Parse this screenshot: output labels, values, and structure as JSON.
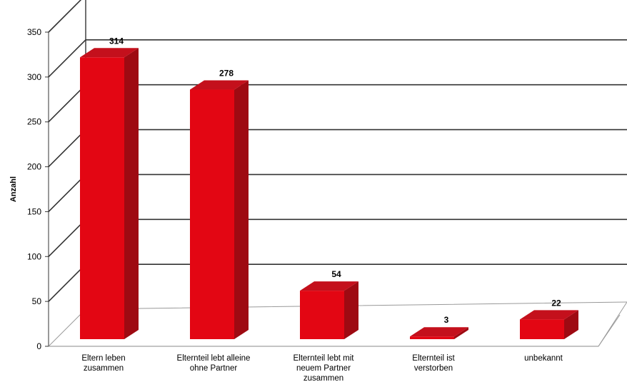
{
  "chart_data": {
    "type": "bar",
    "ylabel": "Anzahl",
    "ylim": [
      0,
      350
    ],
    "yticks": [
      "0",
      "50",
      "100",
      "150",
      "200",
      "250",
      "300",
      "350"
    ],
    "categories": [
      [
        "Eltern leben",
        "zusammen"
      ],
      [
        "Elternteil lebt alleine",
        "ohne Partner"
      ],
      [
        "Elternteil lebt mit",
        "neuem Partner",
        "zusammen"
      ],
      [
        "Elternteil ist",
        "verstorben"
      ],
      [
        "unbekannt"
      ]
    ],
    "values": [
      314,
      278,
      54,
      3,
      22
    ],
    "data_labels": [
      "314",
      "278",
      "54",
      "3",
      "22"
    ],
    "grid": true,
    "style": "3d",
    "colors": {
      "front": "#e30613",
      "side": "#9e0a12",
      "top": "#c4101c",
      "grid": "#333333"
    }
  }
}
